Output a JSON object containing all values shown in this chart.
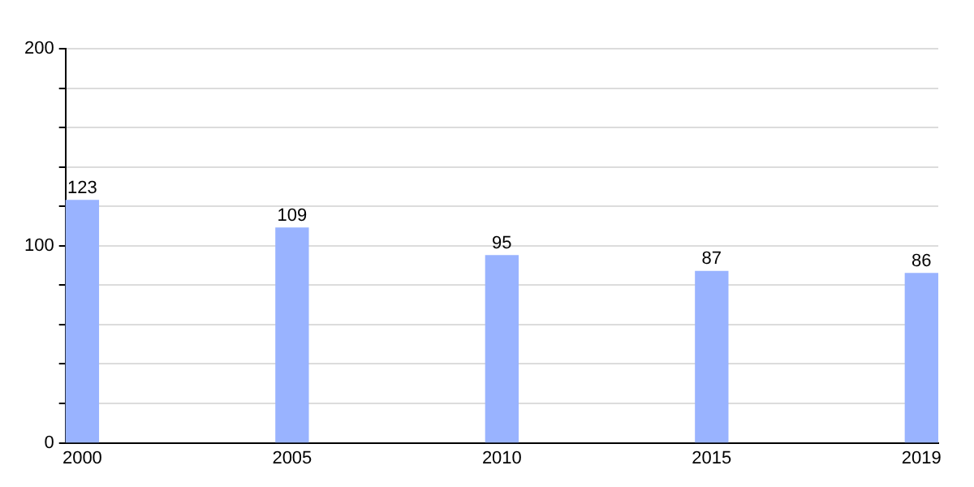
{
  "chart_data": {
    "type": "bar",
    "categories": [
      "2000",
      "2005",
      "2010",
      "2015",
      "2019"
    ],
    "values": [
      123,
      109,
      95,
      87,
      86
    ],
    "color": "#99b3ff",
    "data_labels": true,
    "grid": "y",
    "ylim": [
      0,
      200
    ],
    "yticks": [
      0,
      {
        "value": 20,
        "label": null
      },
      {
        "value": 40,
        "label": null
      },
      {
        "value": 60,
        "label": null
      },
      {
        "value": 80,
        "label": null
      },
      100,
      {
        "value": 120,
        "label": null
      },
      {
        "value": 140,
        "label": null
      },
      {
        "value": 160,
        "label": null
      },
      {
        "value": 180,
        "label": null
      },
      200
    ]
  }
}
